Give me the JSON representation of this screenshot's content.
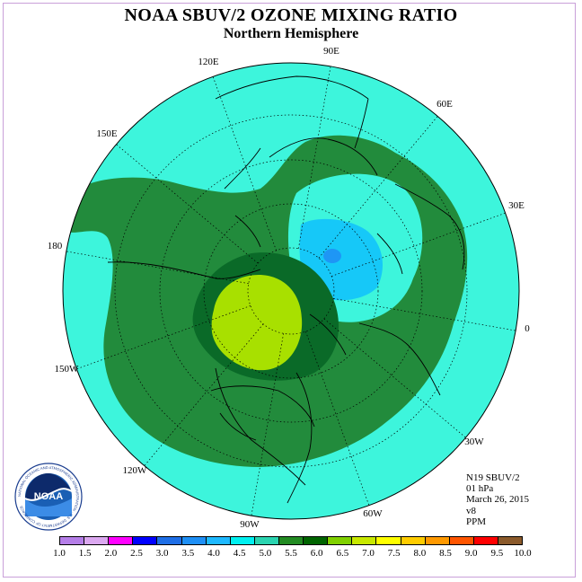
{
  "title": "NOAA SBUV/2 OZONE MIXING RATIO",
  "subtitle": "Northern Hemisphere",
  "longitude_labels": [
    "90E",
    "60E",
    "30E",
    "0",
    "30W",
    "60W",
    "90W",
    "120W",
    "150W",
    "180",
    "150E",
    "120E"
  ],
  "info": {
    "satellite": "N19 SBUV/2",
    "level": "01 hPa",
    "date": "March 26, 2015",
    "version": "v8",
    "units": "PPM"
  },
  "logo": {
    "text": "NOAA",
    "ring_text": "NATIONAL OCEANIC AND ATMOSPHERIC ADMINISTRATION · U.S. DEPARTMENT OF COMMERCE"
  },
  "colorbar": {
    "ticks": [
      "1.0",
      "1.5",
      "2.0",
      "2.5",
      "3.0",
      "3.5",
      "4.0",
      "4.5",
      "5.0",
      "5.5",
      "6.0",
      "6.5",
      "7.0",
      "7.5",
      "8.0",
      "8.5",
      "9.0",
      "9.5",
      "10.0"
    ],
    "colors": [
      "#b57ee8",
      "#dba8f0",
      "#ff00ff",
      "#0000ff",
      "#1e6ee6",
      "#1e8ff5",
      "#1eb9ff",
      "#00f0f0",
      "#2ad4b0",
      "#228b22",
      "#006400",
      "#80d000",
      "#c8e800",
      "#ffff00",
      "#ffcc00",
      "#ff9900",
      "#ff5500",
      "#ff0000",
      "#8b5a2b"
    ]
  },
  "map_colors": {
    "ocean_fill": "#3df5dc",
    "dark_green": "#228b3c",
    "darker_green": "#0a6a28",
    "blue": "#16c8f8",
    "light_blue": "#72d8f8",
    "yellow_green": "#a8e000"
  }
}
